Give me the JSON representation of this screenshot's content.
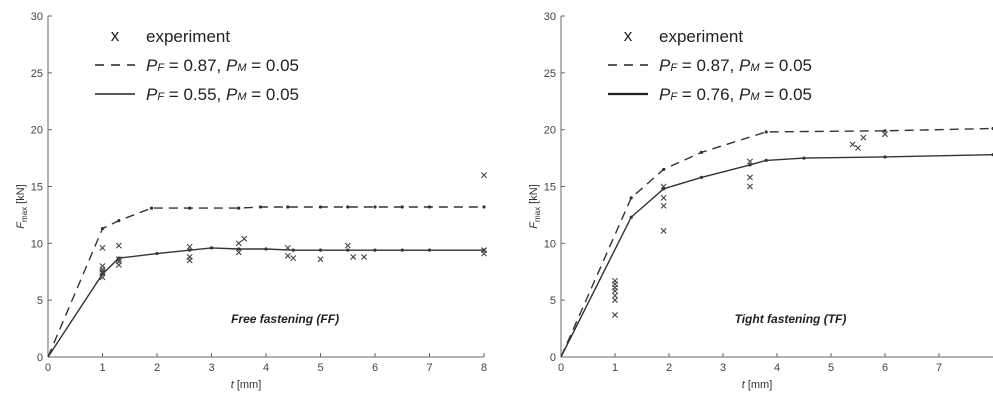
{
  "chart_data": [
    {
      "type": "line",
      "title": "",
      "annotation": "Free fastening (FF)",
      "xlabel_var": "t",
      "xlabel_unit": "[mm]",
      "ylabel_var": "F",
      "ylabel_sub": "max",
      "ylabel_unit": "[kN]",
      "xlim": [
        0,
        8
      ],
      "ylim": [
        0,
        30
      ],
      "xticks": [
        0,
        1,
        2,
        3,
        4,
        5,
        6,
        7,
        8
      ],
      "yticks": [
        0,
        5,
        10,
        15,
        20,
        25,
        30
      ],
      "grid": false,
      "legend_position": "top-left",
      "legend": [
        {
          "marker": "x",
          "label": "experiment"
        },
        {
          "style": "dashed",
          "pf_label": "P",
          "pf_sub": "F",
          "pf_value": " = 0.87, ",
          "pm_label": "P",
          "pm_sub": "M",
          "pm_value": " = 0.05"
        },
        {
          "style": "solid",
          "pf_label": "P",
          "pf_sub": "F",
          "pf_value": " = 0.55, ",
          "pm_label": "P",
          "pm_sub": "M",
          "pm_value": " = 0.05"
        }
      ],
      "series": [
        {
          "style": "dashed",
          "x": [
            0,
            1,
            1.3,
            1.9,
            2.6,
            3.5,
            3.9,
            4.4,
            5,
            5.5,
            6,
            6.5,
            7,
            8
          ],
          "y": [
            0,
            11.3,
            12.0,
            13.1,
            13.1,
            13.1,
            13.2,
            13.2,
            13.2,
            13.2,
            13.2,
            13.2,
            13.2,
            13.2
          ]
        },
        {
          "style": "solid",
          "x": [
            0,
            1,
            1.3,
            2,
            2.6,
            3,
            3.5,
            4,
            4.5,
            5,
            5.5,
            6,
            6.5,
            7,
            8
          ],
          "y": [
            0,
            7.3,
            8.7,
            9.1,
            9.4,
            9.6,
            9.5,
            9.5,
            9.4,
            9.4,
            9.4,
            9.4,
            9.4,
            9.4,
            9.4
          ]
        }
      ],
      "experiment": {
        "x": [
          1,
          1,
          1,
          1,
          1,
          1,
          1.3,
          1.3,
          1.3,
          1.3,
          2.6,
          2.6,
          2.6,
          3.5,
          3.5,
          3.6,
          4.4,
          4.4,
          4.5,
          5,
          5.5,
          5.6,
          5.8,
          8,
          8,
          8
        ],
        "y": [
          9.6,
          8.0,
          7.7,
          7.5,
          7.4,
          7.0,
          9.8,
          8.6,
          8.4,
          8.1,
          9.7,
          8.8,
          8.5,
          10.0,
          9.2,
          10.4,
          9.6,
          8.9,
          8.7,
          8.6,
          9.8,
          8.8,
          8.8,
          16.0,
          9.4,
          9.1
        ]
      }
    },
    {
      "type": "line",
      "title": "",
      "annotation": "Tight  fastening (TF)",
      "xlabel_var": "t",
      "xlabel_unit": "[mm]",
      "ylabel_var": "F",
      "ylabel_sub": "max",
      "ylabel_unit": "[kN]",
      "xlim": [
        0,
        8
      ],
      "ylim": [
        0,
        30
      ],
      "xticks": [
        0,
        1,
        2,
        3,
        4,
        5,
        6,
        7
      ],
      "yticks": [
        0,
        5,
        10,
        15,
        20,
        25,
        30
      ],
      "grid": false,
      "legend_position": "top-left",
      "legend": [
        {
          "marker": "x",
          "label": "experiment"
        },
        {
          "style": "dashed",
          "pf_label": "P",
          "pf_sub": "F",
          "pf_value": " = 0.87, ",
          "pm_label": "P",
          "pm_sub": "M",
          "pm_value": " = 0.05"
        },
        {
          "style": "solid",
          "pf_label": "P",
          "pf_sub": "F",
          "pf_value": " = 0.76, ",
          "pm_label": "P",
          "pm_sub": "M",
          "pm_value": " = 0.05"
        }
      ],
      "series": [
        {
          "style": "dashed",
          "x": [
            0,
            1.3,
            1.9,
            2.6,
            3.8,
            6,
            8
          ],
          "y": [
            0,
            14.0,
            16.5,
            18.0,
            19.8,
            19.9,
            20.1
          ]
        },
        {
          "style": "solid",
          "x": [
            0,
            1.3,
            1.9,
            2.6,
            3.5,
            3.8,
            4.5,
            6,
            8
          ],
          "y": [
            0,
            12.3,
            14.8,
            15.8,
            16.9,
            17.3,
            17.5,
            17.6,
            17.8
          ]
        }
      ],
      "experiment": {
        "x": [
          1,
          1,
          1,
          1,
          1,
          1,
          1,
          1.9,
          1.9,
          1.9,
          1.9,
          3.5,
          3.5,
          3.5,
          5.4,
          5.5,
          5.6,
          6
        ],
        "y": [
          6.7,
          6.4,
          6.1,
          5.8,
          5.4,
          5.0,
          3.7,
          15.0,
          14.0,
          13.3,
          11.1,
          17.2,
          15.8,
          15.0,
          18.7,
          18.4,
          19.3,
          19.6
        ]
      }
    }
  ]
}
